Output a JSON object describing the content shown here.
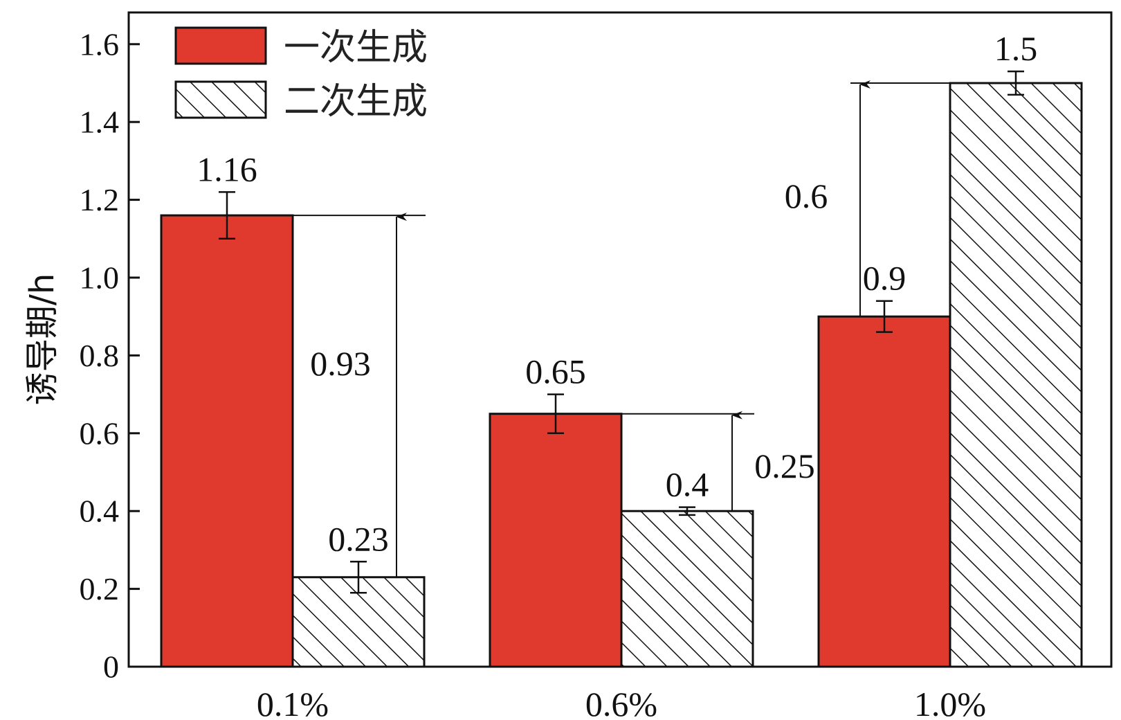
{
  "chart_data": {
    "type": "bar",
    "categories": [
      "0.1%",
      "0.6%",
      "1.0%"
    ],
    "series": [
      {
        "name": "一次生成",
        "values": [
          1.16,
          0.65,
          0.9
        ],
        "errors": [
          0.06,
          0.05,
          0.04
        ],
        "color": "#e03a2e",
        "pattern": "solid"
      },
      {
        "name": "二次生成",
        "values": [
          0.23,
          0.4,
          1.5
        ],
        "errors": [
          0.04,
          0.01,
          0.03
        ],
        "color": "#ffffff",
        "pattern": "hatch"
      }
    ],
    "value_labels": [
      [
        "1.16",
        "0.65",
        "0.9"
      ],
      [
        "0.23",
        "0.4",
        "1.5"
      ]
    ],
    "differences": [
      {
        "category": "0.1%",
        "value": "0.93"
      },
      {
        "category": "0.6%",
        "value": "0.25"
      },
      {
        "category": "1.0%",
        "value": "0.6"
      }
    ],
    "title": "",
    "xlabel": "",
    "ylabel": "诱导期/h",
    "ylim": [
      0,
      1.7
    ],
    "yticks": [
      "0",
      "0.2",
      "0.4",
      "0.6",
      "0.8",
      "1.0",
      "1.2",
      "1.4",
      "1.6"
    ],
    "legend_position": "top-left",
    "grid": false
  }
}
